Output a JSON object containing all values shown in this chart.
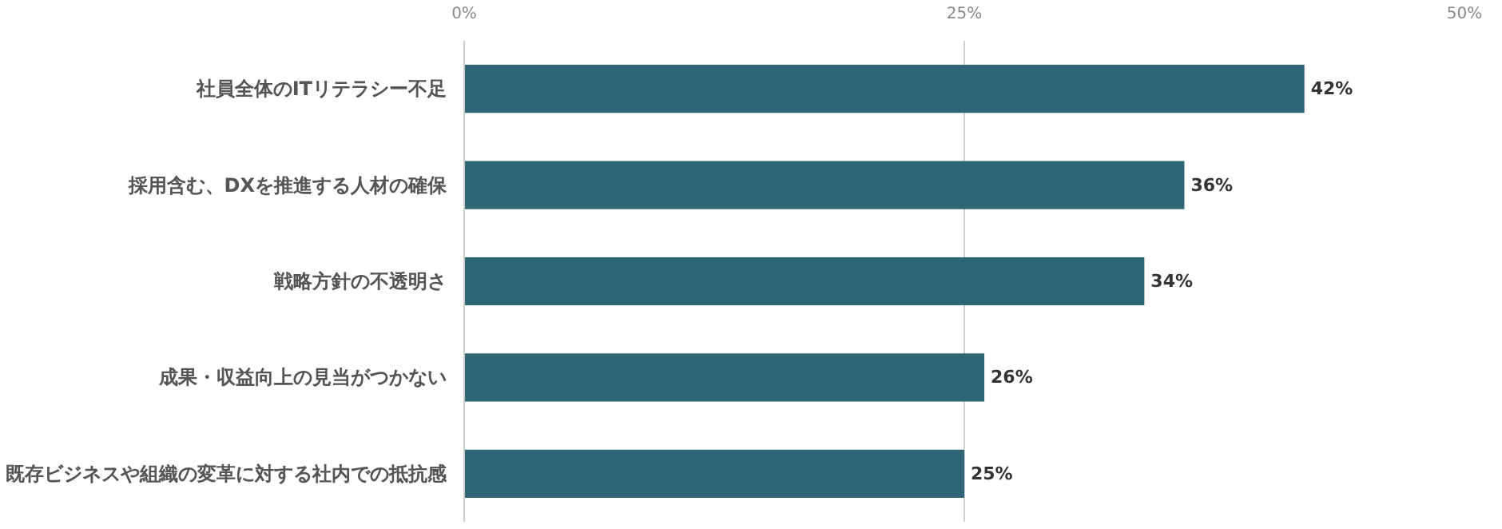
{
  "chart_data": {
    "type": "bar",
    "orientation": "horizontal",
    "categories": [
      "社員全体のITリテラシー不足",
      "採用含む、DXを推進する人材の確保",
      "戦略方針の不透明さ",
      "成果・収益向上の見当がつかない",
      "既存ビジネスや組織の変革に対する社内での抵抗感"
    ],
    "values": [
      42,
      36,
      34,
      26,
      25
    ],
    "value_labels": [
      "42%",
      "36%",
      "34%",
      "26%",
      "25%"
    ],
    "color": "#2e6676",
    "xlim": [
      0,
      50
    ],
    "xticks": [
      {
        "value": 0,
        "label": "0%"
      },
      {
        "value": 25,
        "label": "25%"
      },
      {
        "value": 50,
        "label": "50%"
      }
    ],
    "grid": "x"
  }
}
